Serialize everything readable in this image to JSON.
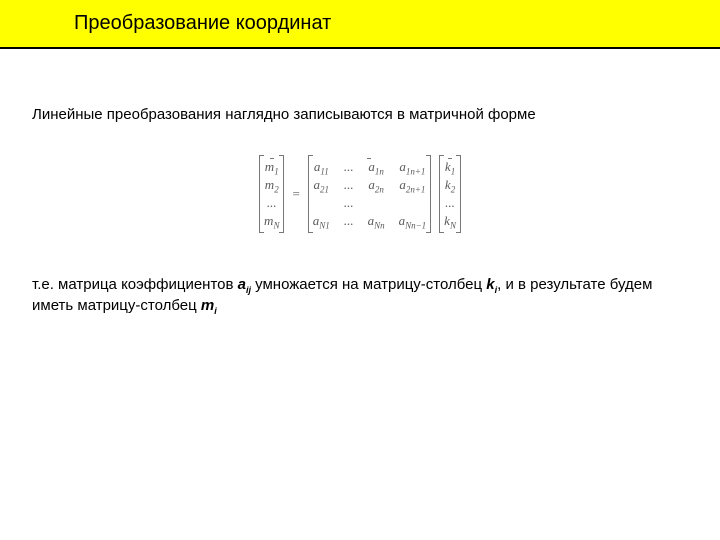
{
  "header": {
    "title": "Преобразование координат"
  },
  "paragraph1": "Линейные преобразования наглядно записываются в матричной форме",
  "paragraph2_parts": {
    "p1": "т.е. матрица коэффициентов ",
    "a": "a",
    "a_sub": "ij",
    "p2": " умножается на матрицу-столбец ",
    "k": "k",
    "k_sub": "i",
    "p3": ", и в результате будем иметь матрицу-столбец ",
    "m": "m",
    "m_sub": "i"
  },
  "matrix": {
    "m_vec": [
      "m₁",
      "m₂",
      "...",
      "m_N"
    ],
    "eq": "=",
    "A": {
      "col1": [
        "a₁₁",
        "a₂₁",
        "",
        "a_N₁"
      ],
      "col2": [
        "...",
        "...",
        "...",
        "..."
      ],
      "col3": [
        "a₁ₙ",
        "a₂ₙ",
        "",
        "a_Nₙ"
      ],
      "col4": [
        "a₁ₙ₊₁",
        "a₂ₙ₊₁",
        "",
        "a_Nₙ₋₁"
      ]
    },
    "k_vec": [
      "k₁",
      "k₂",
      "...",
      "k_N"
    ]
  },
  "style": {
    "header_bg": "#ffff00",
    "header_border": "#000000",
    "page_bg": "#ffffff",
    "text_color": "#000000",
    "math_color": "#5a5a5a",
    "body_fontsize": 15,
    "header_fontsize": 20,
    "math_fontsize": 13
  }
}
